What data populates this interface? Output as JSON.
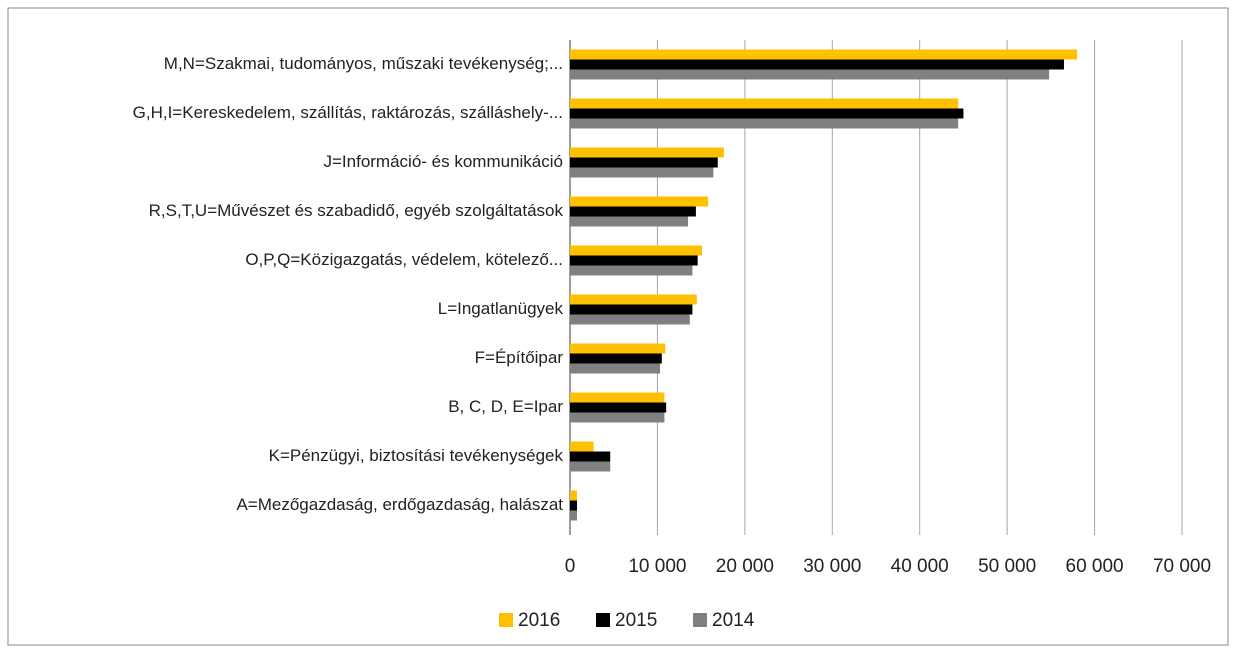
{
  "chart_data": {
    "type": "bar",
    "orientation": "horizontal",
    "categories": [
      "M,N=Szakmai, tudományos, műszaki tevékenység;...",
      "G,H,I=Kereskedelem, szállítás, raktározás, szálláshely-...",
      "J=Információ- és kommunikáció",
      "R,S,T,U=Művészet és szabadidő, egyéb szolgáltatások",
      "O,P,Q=Közigazgatás, védelem, kötelező...",
      "L=Ingatlanügyek",
      "F=Építőipar",
      "B, C, D, E=Ipar",
      "K=Pénzügyi, biztosítási tevékenységek",
      "A=Mezőgazdaság, erdőgazdaság, halászat"
    ],
    "series": [
      {
        "name": "2016",
        "color": "#ffc000",
        "values": [
          58000,
          44400,
          17600,
          15800,
          15100,
          14500,
          10900,
          10800,
          2700,
          800
        ]
      },
      {
        "name": "2015",
        "color": "#000000",
        "values": [
          56500,
          45000,
          16900,
          14400,
          14600,
          14000,
          10500,
          11000,
          4600,
          800
        ]
      },
      {
        "name": "2014",
        "color": "#808080",
        "values": [
          54800,
          44400,
          16400,
          13500,
          14000,
          13700,
          10300,
          10800,
          4600,
          800
        ]
      }
    ],
    "xlim": [
      0,
      70000
    ],
    "xticks": [
      0,
      {
        "value": 10000,
        "label": "10 000"
      },
      {
        "value": 20000,
        "label": "20 000"
      },
      {
        "value": 30000,
        "label": "30 000"
      },
      {
        "value": 40000,
        "label": "40 000"
      },
      {
        "value": 50000,
        "label": "50 000"
      },
      {
        "value": 60000,
        "label": "60 000"
      },
      {
        "value": 70000,
        "label": "70 000"
      }
    ],
    "grid": true,
    "legend": "bottom"
  }
}
